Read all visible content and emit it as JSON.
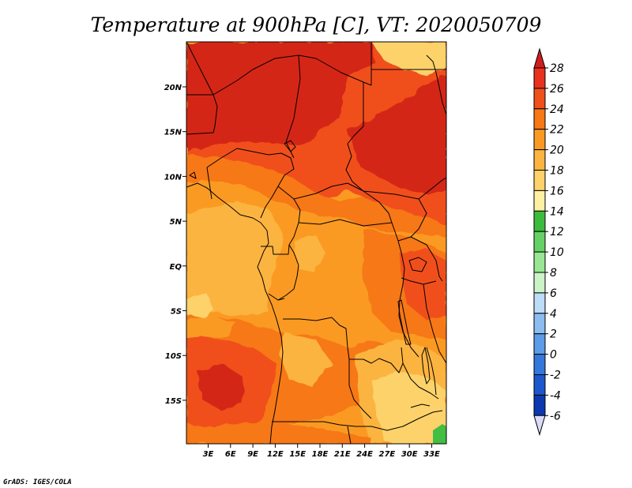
{
  "title": "Temperature at 900hPa [C], VT: 2020050709",
  "credit": "GrADS: IGES/COLA",
  "lat_ticks": [
    "20N",
    "15N",
    "10N",
    "5N",
    "EQ",
    "5S",
    "10S",
    "15S"
  ],
  "lon_ticks": [
    "3E",
    "6E",
    "9E",
    "12E",
    "15E",
    "18E",
    "21E",
    "24E",
    "27E",
    "30E",
    "33E"
  ],
  "colorbar": {
    "labels": [
      "28",
      "26",
      "24",
      "22",
      "20",
      "18",
      "16",
      "14",
      "12",
      "10",
      "8",
      "6",
      "4",
      "2",
      "0",
      "-2",
      "-4",
      "-6"
    ],
    "colors": [
      "#e8321e",
      "#f0501a",
      "#f77814",
      "#fb9a22",
      "#fcb440",
      "#fdd26a",
      "#fef0a2",
      "#3cbc3c",
      "#66d266",
      "#98e694",
      "#caf4c6",
      "#bcdcf8",
      "#8cbcf0",
      "#5c9ce8",
      "#3478dc",
      "#1c58cc",
      "#0c38b0",
      "#060880"
    ],
    "over_color": "#d01e1e",
    "under_color": "#dcdcf8"
  },
  "map": {
    "lon_range": [
      0,
      34
    ],
    "lat_range": [
      -20,
      24
    ],
    "palette": {
      "t27": "#d42814",
      "t25": "#f0501a",
      "t23": "#f77814",
      "t21": "#fb9a22",
      "t19": "#fcb440",
      "t17": "#fdd26a",
      "t15": "#42be42"
    }
  }
}
